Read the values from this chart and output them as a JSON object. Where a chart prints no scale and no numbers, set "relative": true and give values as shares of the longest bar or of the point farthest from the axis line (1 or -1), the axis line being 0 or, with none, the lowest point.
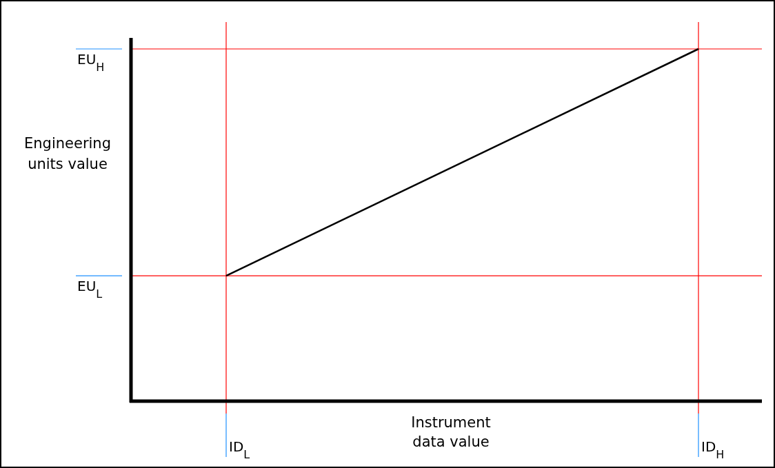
{
  "chart_data": {
    "type": "line",
    "xlabel": "Instrument data value",
    "ylabel": "Engineering units value",
    "categories": [
      "ID$_{L}$",
      "ID$_{H}$"
    ],
    "relative": true,
    "marker": "none",
    "line_style": "solid",
    "grid": false,
    "series": [
      {
        "color": "#000000",
        "values": [
          0.356,
          1
        ]
      }
    ],
    "ref_lines": [
      {
        "axis": "y",
        "value": 0.356,
        "label": "EU$_{L}$",
        "color": "#ff0000"
      },
      {
        "axis": "y",
        "value": 1,
        "label": "EU$_{H}$",
        "color": "#ff0000"
      },
      {
        "axis": "x",
        "value": "ID$_{L}$",
        "color": "#ff0000"
      },
      {
        "axis": "x",
        "value": "ID$_{H}$",
        "color": "#ff0000"
      }
    ]
  }
}
